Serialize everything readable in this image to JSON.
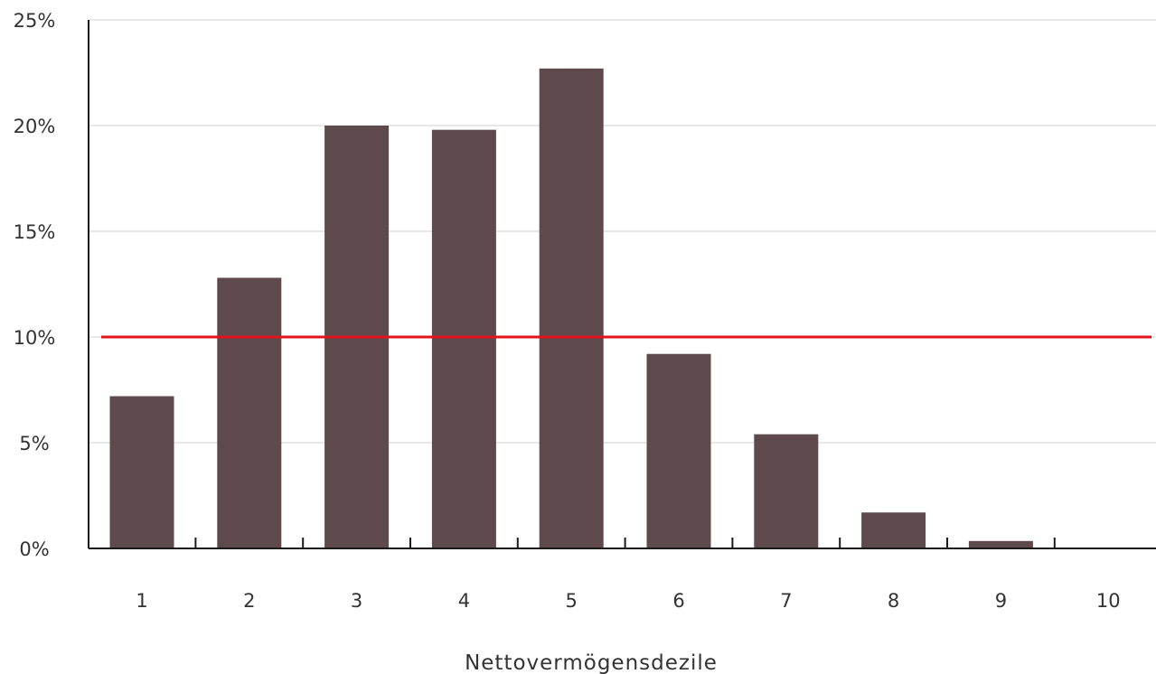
{
  "chart_data": {
    "type": "bar",
    "title": "",
    "xlabel": "Nettovermögensdezile",
    "ylabel": "",
    "categories": [
      "1",
      "2",
      "3",
      "4",
      "5",
      "6",
      "7",
      "8",
      "9",
      "10"
    ],
    "values": [
      7.2,
      12.8,
      20.0,
      19.8,
      22.7,
      9.2,
      5.4,
      1.7,
      0.35,
      0.0
    ],
    "value_unit": "%",
    "ylim": [
      0,
      25
    ],
    "yticks": [
      0,
      5,
      10,
      15,
      20,
      25
    ],
    "ytick_labels": [
      "0%",
      "5%",
      "10%",
      "15%",
      "20%",
      "25%"
    ],
    "reference_line": {
      "value": 10
    },
    "grid": true,
    "legend": "none",
    "colors": {
      "bar": "#5e4a4c",
      "reference_line": "#e3131b",
      "grid": "#d9d9d9",
      "axis": "#1a1a1a"
    }
  }
}
